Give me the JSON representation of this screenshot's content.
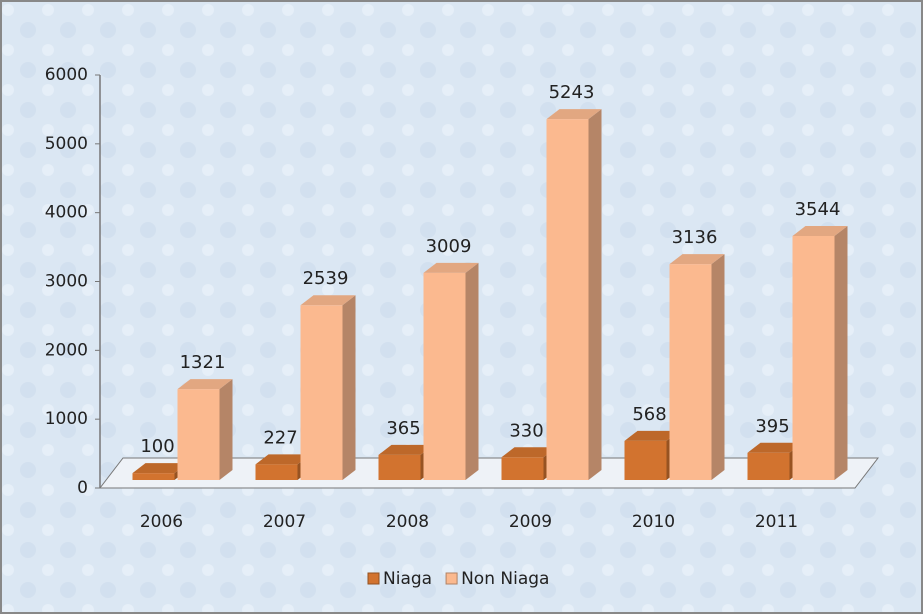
{
  "chart_data": {
    "type": "bar3d",
    "categories": [
      "2006",
      "2007",
      "2008",
      "2009",
      "2010",
      "2011"
    ],
    "series": [
      {
        "name": "Niaga",
        "color": "#d2732f",
        "values": [
          100,
          227,
          365,
          330,
          568,
          395
        ]
      },
      {
        "name": "Non Niaga",
        "color": "#fbb98f",
        "values": [
          1321,
          2539,
          3009,
          5243,
          3136,
          3544
        ]
      }
    ],
    "ylim": [
      0,
      6000
    ],
    "yticks": [
      0,
      1000,
      2000,
      3000,
      4000,
      5000,
      6000
    ],
    "data_labels": true,
    "legend": "bottom"
  }
}
